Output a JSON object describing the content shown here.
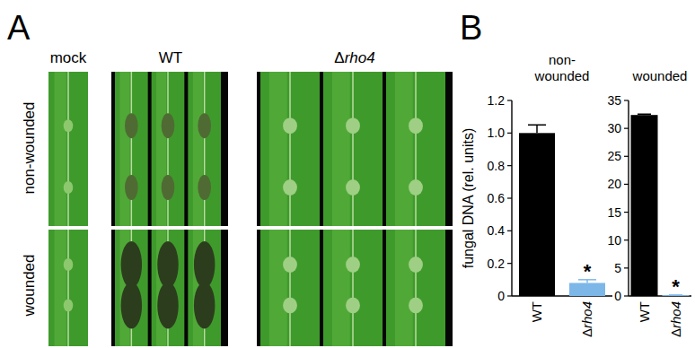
{
  "panel_a": {
    "label": "A",
    "columns": [
      "mock",
      "WT",
      "Δrho4"
    ],
    "rows": [
      "non-wounded",
      "wounded"
    ]
  },
  "panel_b": {
    "label": "B"
  },
  "chart_data": [
    {
      "type": "bar",
      "title": "non-wounded",
      "y_label": "fungal DNA (rel. units)",
      "categories": [
        "WT",
        "Δrho4"
      ],
      "values": [
        1.0,
        0.08
      ],
      "errors": [
        0.05,
        0.02
      ],
      "colors": [
        "#000000",
        "#7db7e8"
      ],
      "ylim": [
        0,
        1.2
      ],
      "yticks": [
        0,
        0.2,
        0.4,
        0.6,
        0.8,
        {
          "value": 1,
          "label": "1.0"
        },
        1.2
      ],
      "annotations": [
        {
          "text": "*",
          "category": "Δrho4"
        }
      ]
    },
    {
      "type": "bar",
      "title": "wounded",
      "categories": [
        "WT",
        "Δrho4"
      ],
      "values": [
        32.4,
        0.15
      ],
      "errors": [
        0.15,
        0.02
      ],
      "colors": [
        "#000000",
        "#7db7e8"
      ],
      "ylim": [
        0,
        35
      ],
      "yticks": [
        0,
        5,
        10,
        15,
        20,
        25,
        30,
        35
      ],
      "annotations": [
        {
          "text": "*",
          "category": "Δrho4"
        }
      ]
    }
  ]
}
